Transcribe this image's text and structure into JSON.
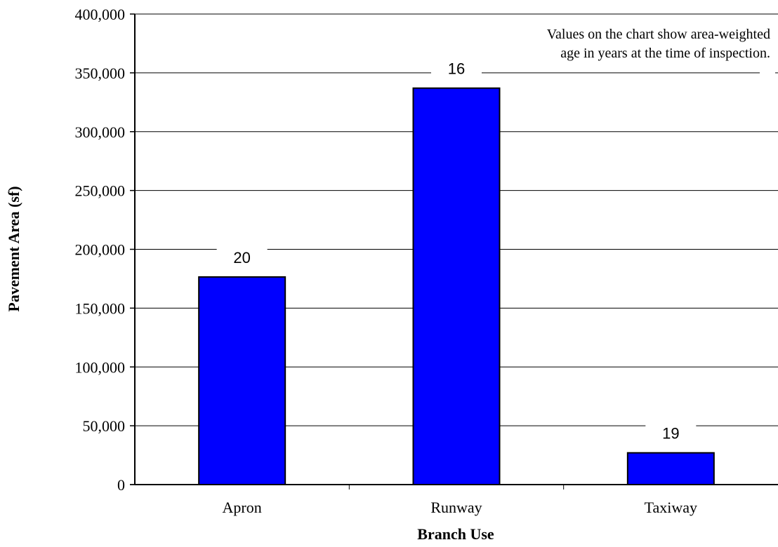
{
  "chart_data": {
    "type": "bar",
    "categories": [
      "Apron",
      "Runway",
      "Taxiway"
    ],
    "values": [
      176500,
      337000,
      27000
    ],
    "data_labels": [
      "20",
      "16",
      "19"
    ],
    "xlabel": "Branch Use",
    "ylabel": "Pavement Area (sf)",
    "ylim": [
      0,
      400000
    ],
    "yticks": [
      "0",
      "50,000",
      "100,000",
      "150,000",
      "200,000",
      "250,000",
      "300,000",
      "350,000",
      "400,000"
    ],
    "annotation": [
      "Values on the chart show area-weighted",
      "age in years at the time of inspection."
    ],
    "grid": true,
    "bar_color": "#0000ff"
  }
}
